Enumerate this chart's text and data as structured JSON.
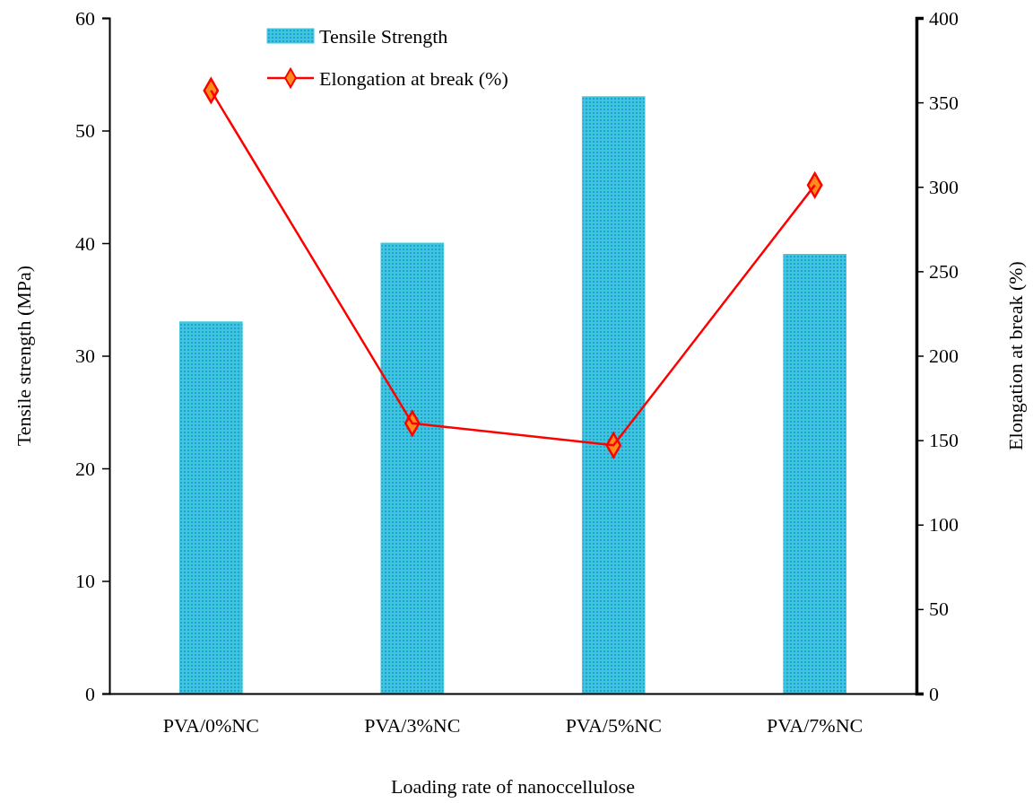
{
  "chart_data": {
    "type": "bar",
    "xlabel": "Loading rate of nanoccellulose",
    "ylabel": "Tensile strength (MPa)",
    "y2label": "Elongation at break (%)",
    "categories": [
      "PVA/0%NC",
      "PVA/3%NC",
      "PVA/5%NC",
      "PVA/7%NC"
    ],
    "series": [
      {
        "name": "Tensile Strength",
        "color": "#3cc8dc",
        "values": [
          33,
          40,
          53,
          39
        ]
      },
      {
        "name": "Elongation at break (%)",
        "type": "line",
        "axis": "y2",
        "color": "#ff0000",
        "marker": "diamond",
        "values": [
          357,
          160,
          147,
          301
        ]
      }
    ],
    "ylim": [
      0,
      60
    ],
    "yticks": [
      0,
      10,
      20,
      30,
      40,
      50,
      60
    ],
    "y2lim": [
      0,
      400
    ],
    "y2ticks": [
      0,
      50,
      100,
      150,
      200,
      250,
      300,
      350,
      400
    ],
    "grid": false,
    "legend": "top"
  }
}
